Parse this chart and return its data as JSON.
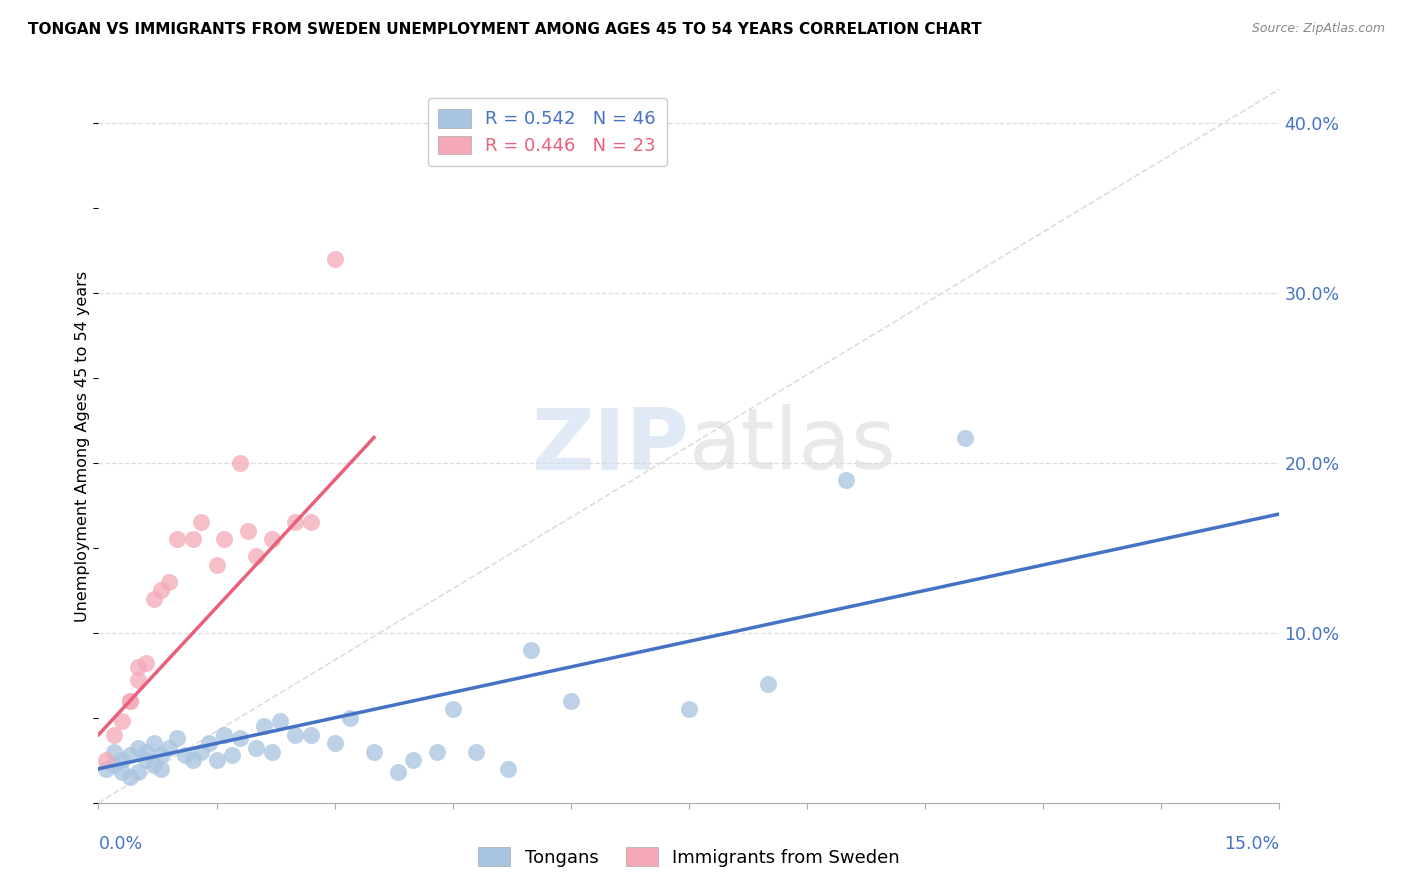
{
  "title": "TONGAN VS IMMIGRANTS FROM SWEDEN UNEMPLOYMENT AMONG AGES 45 TO 54 YEARS CORRELATION CHART",
  "source": "Source: ZipAtlas.com",
  "ylabel": "Unemployment Among Ages 45 to 54 years",
  "xmin": 0.0,
  "xmax": 0.15,
  "ymin": 0.0,
  "ymax": 0.42,
  "yticks": [
    0.1,
    0.2,
    0.3,
    0.4
  ],
  "ytick_labels": [
    "10.0%",
    "20.0%",
    "30.0%",
    "40.0%"
  ],
  "legend1_label": "R = 0.542   N = 46",
  "legend2_label": "R = 0.446   N = 23",
  "legend_group_label1": "Tongans",
  "legend_group_label2": "Immigrants from Sweden",
  "blue_color": "#A8C4E0",
  "pink_color": "#F4A8B8",
  "trend_blue": "#4472C4",
  "trend_pink": "#E8607A",
  "diag_color": "#DDDDDD",
  "grid_color": "#DDDDDD",
  "blue_x": [
    0.001,
    0.002,
    0.002,
    0.003,
    0.003,
    0.004,
    0.004,
    0.005,
    0.005,
    0.006,
    0.006,
    0.007,
    0.007,
    0.008,
    0.008,
    0.009,
    0.01,
    0.011,
    0.012,
    0.013,
    0.014,
    0.015,
    0.016,
    0.017,
    0.018,
    0.02,
    0.021,
    0.022,
    0.023,
    0.025,
    0.027,
    0.03,
    0.032,
    0.035,
    0.038,
    0.04,
    0.043,
    0.045,
    0.048,
    0.052,
    0.055,
    0.06,
    0.075,
    0.085,
    0.095,
    0.11
  ],
  "blue_y": [
    0.02,
    0.022,
    0.03,
    0.018,
    0.025,
    0.028,
    0.015,
    0.032,
    0.018,
    0.025,
    0.03,
    0.022,
    0.035,
    0.028,
    0.02,
    0.032,
    0.038,
    0.028,
    0.025,
    0.03,
    0.035,
    0.025,
    0.04,
    0.028,
    0.038,
    0.032,
    0.045,
    0.03,
    0.048,
    0.04,
    0.04,
    0.035,
    0.05,
    0.03,
    0.018,
    0.025,
    0.03,
    0.055,
    0.03,
    0.02,
    0.09,
    0.06,
    0.055,
    0.07,
    0.19,
    0.215
  ],
  "pink_x": [
    0.001,
    0.002,
    0.003,
    0.004,
    0.004,
    0.005,
    0.005,
    0.006,
    0.007,
    0.008,
    0.009,
    0.01,
    0.012,
    0.013,
    0.015,
    0.016,
    0.018,
    0.019,
    0.02,
    0.022,
    0.025,
    0.027,
    0.03
  ],
  "pink_y": [
    0.025,
    0.04,
    0.048,
    0.06,
    0.06,
    0.072,
    0.08,
    0.082,
    0.12,
    0.125,
    0.13,
    0.155,
    0.155,
    0.165,
    0.14,
    0.155,
    0.2,
    0.16,
    0.145,
    0.155,
    0.165,
    0.165,
    0.32
  ],
  "blue_trend_x0": 0.0,
  "blue_trend_y0": 0.02,
  "blue_trend_x1": 0.15,
  "blue_trend_y1": 0.17,
  "pink_trend_x0": 0.0,
  "pink_trend_y0": 0.04,
  "pink_trend_x1": 0.035,
  "pink_trend_y1": 0.215
}
